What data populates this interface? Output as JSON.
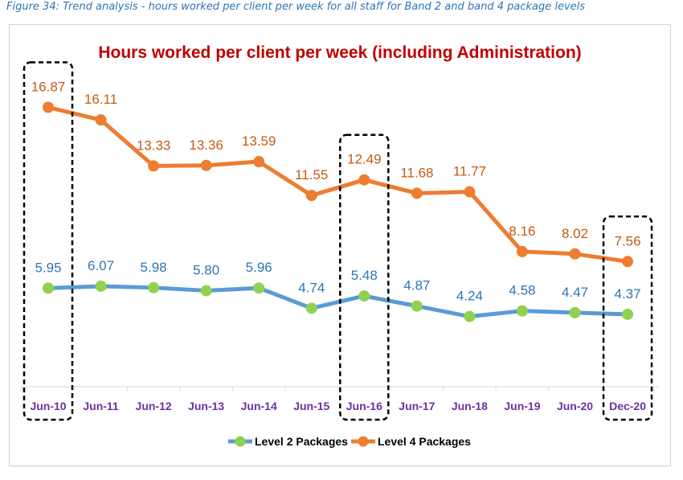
{
  "caption": "Figure 34: Trend analysis - hours worked per client per week for all staff for Band 2 and band 4 package levels",
  "chart_data": {
    "type": "line",
    "title": "Hours worked per client per week (including Administration)",
    "categories": [
      "Jun-10",
      "Jun-11",
      "Jun-12",
      "Jun-13",
      "Jun-14",
      "Jun-15",
      "Jun-16",
      "Jun-17",
      "Jun-18",
      "Jun-19",
      "Jun-20",
      "Dec-20"
    ],
    "series": [
      {
        "name": "Level 2 Packages",
        "values": [
          5.95,
          6.07,
          5.98,
          5.8,
          5.96,
          4.74,
          5.48,
          4.87,
          4.24,
          4.58,
          4.47,
          4.37
        ],
        "line_color": "#5b9bd5",
        "marker_color": "#92d050",
        "label_color": "#2e75b6"
      },
      {
        "name": "Level 4 Packages",
        "values": [
          16.87,
          16.11,
          13.33,
          13.36,
          13.59,
          11.55,
          12.49,
          11.68,
          11.77,
          8.16,
          8.02,
          7.56
        ],
        "line_color": "#ed7d31",
        "marker_color": "#ed7d31",
        "label_color": "#c55a11"
      }
    ],
    "highlighted": [
      "Jun-10",
      "Jun-16",
      "Dec-20"
    ],
    "ylim": [
      0,
      20
    ],
    "xlabel": "",
    "ylabel": "",
    "legend": "bottom-center",
    "title_color": "#c00000",
    "tick_color": "#7030a0"
  }
}
